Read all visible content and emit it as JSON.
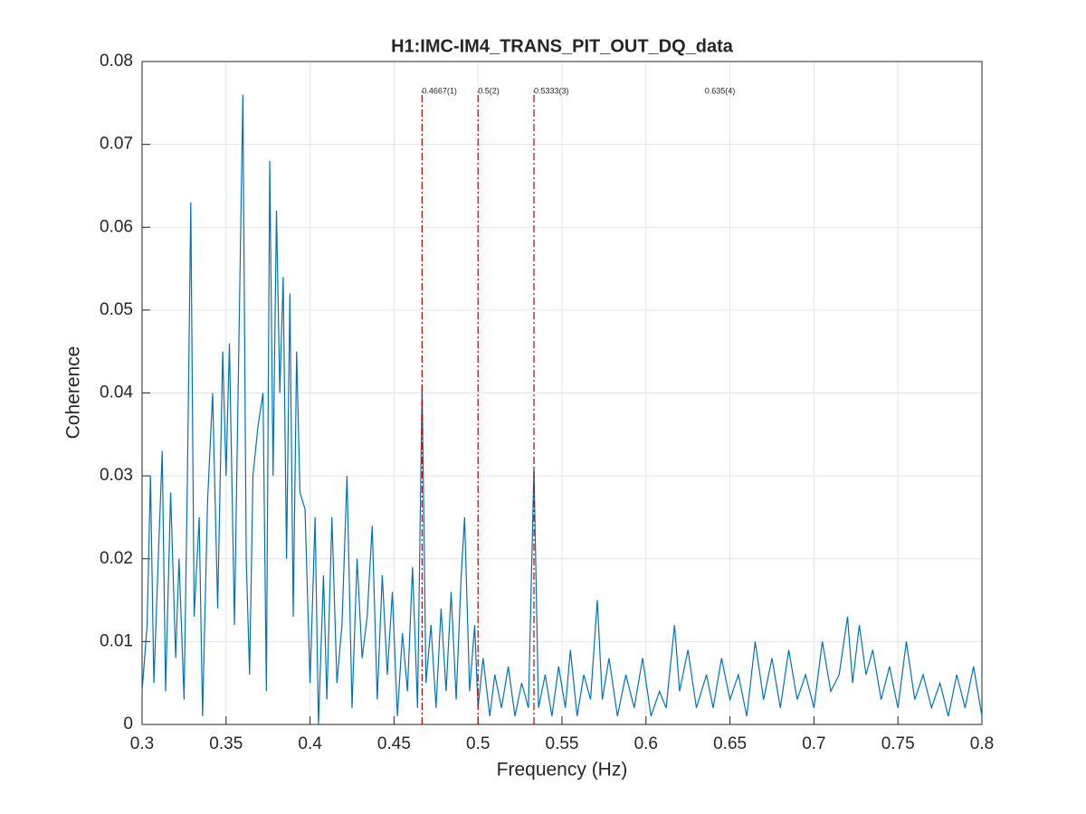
{
  "chart_data": {
    "type": "line",
    "title": "H1:IMC-IM4_TRANS_PIT_OUT_DQ_data",
    "xlabel": "Frequency (Hz)",
    "ylabel": "Coherence",
    "color": "#0072bd",
    "grid": true,
    "xlim": [
      0.3,
      0.8
    ],
    "ylim": [
      0,
      0.08
    ],
    "xticks": [
      0.3,
      0.35,
      0.4,
      0.45,
      0.5,
      0.55,
      0.6,
      0.65,
      0.7,
      0.75,
      0.8
    ],
    "yticks": [
      0,
      0.01,
      0.02,
      0.03,
      0.04,
      0.05,
      0.06,
      0.07,
      0.08
    ],
    "markers": [
      {
        "x": 0.4667,
        "label": "0.4667(1)",
        "show_line": true,
        "color": "#c00000"
      },
      {
        "x": 0.5,
        "label": "0.5(2)",
        "show_line": true,
        "color": "#c00000"
      },
      {
        "x": 0.5333,
        "label": "0.5333(3)",
        "show_line": true,
        "color": "#c00000"
      },
      {
        "x": 0.635,
        "label": "0.635(4)",
        "show_line": false,
        "color": "#c00000"
      }
    ],
    "x": [
      0.3,
      0.303,
      0.305,
      0.307,
      0.31,
      0.312,
      0.314,
      0.317,
      0.32,
      0.322,
      0.325,
      0.327,
      0.329,
      0.331,
      0.334,
      0.336,
      0.339,
      0.342,
      0.345,
      0.348,
      0.35,
      0.352,
      0.355,
      0.357,
      0.36,
      0.362,
      0.364,
      0.366,
      0.369,
      0.372,
      0.374,
      0.376,
      0.378,
      0.38,
      0.382,
      0.384,
      0.386,
      0.388,
      0.39,
      0.392,
      0.394,
      0.397,
      0.4,
      0.403,
      0.405,
      0.408,
      0.41,
      0.413,
      0.416,
      0.419,
      0.422,
      0.425,
      0.428,
      0.431,
      0.434,
      0.437,
      0.44,
      0.443,
      0.446,
      0.449,
      0.452,
      0.455,
      0.458,
      0.461,
      0.464,
      0.4667,
      0.469,
      0.472,
      0.475,
      0.478,
      0.481,
      0.484,
      0.487,
      0.49,
      0.492,
      0.495,
      0.498,
      0.5,
      0.503,
      0.507,
      0.51,
      0.514,
      0.518,
      0.522,
      0.526,
      0.53,
      0.5333,
      0.536,
      0.54,
      0.544,
      0.548,
      0.552,
      0.555,
      0.559,
      0.563,
      0.567,
      0.571,
      0.574,
      0.578,
      0.583,
      0.588,
      0.593,
      0.598,
      0.603,
      0.608,
      0.612,
      0.617,
      0.62,
      0.625,
      0.63,
      0.636,
      0.64,
      0.645,
      0.65,
      0.655,
      0.66,
      0.665,
      0.67,
      0.675,
      0.68,
      0.685,
      0.69,
      0.695,
      0.7,
      0.705,
      0.71,
      0.715,
      0.72,
      0.723,
      0.727,
      0.731,
      0.735,
      0.74,
      0.745,
      0.75,
      0.755,
      0.76,
      0.765,
      0.77,
      0.775,
      0.78,
      0.785,
      0.79,
      0.795,
      0.8
    ],
    "values": [
      0.004,
      0.012,
      0.03,
      0.005,
      0.022,
      0.033,
      0.004,
      0.028,
      0.008,
      0.02,
      0.003,
      0.03,
      0.063,
      0.013,
      0.025,
      0.001,
      0.027,
      0.04,
      0.014,
      0.045,
      0.03,
      0.046,
      0.012,
      0.038,
      0.076,
      0.02,
      0.006,
      0.03,
      0.036,
      0.04,
      0.004,
      0.068,
      0.03,
      0.062,
      0.04,
      0.054,
      0.02,
      0.052,
      0.013,
      0.045,
      0.028,
      0.026,
      0.005,
      0.025,
      0.0,
      0.018,
      0.003,
      0.025,
      0.005,
      0.012,
      0.03,
      0.002,
      0.02,
      0.008,
      0.013,
      0.024,
      0.003,
      0.018,
      0.006,
      0.016,
      0.001,
      0.011,
      0.004,
      0.019,
      0.002,
      0.041,
      0.005,
      0.012,
      0.002,
      0.014,
      0.004,
      0.016,
      0.003,
      0.018,
      0.025,
      0.004,
      0.012,
      0.002,
      0.008,
      0.001,
      0.006,
      0.002,
      0.007,
      0.001,
      0.005,
      0.002,
      0.031,
      0.002,
      0.006,
      0.001,
      0.007,
      0.002,
      0.009,
      0.001,
      0.006,
      0.003,
      0.015,
      0.003,
      0.008,
      0.001,
      0.006,
      0.002,
      0.008,
      0.001,
      0.004,
      0.002,
      0.012,
      0.004,
      0.009,
      0.002,
      0.006,
      0.002,
      0.008,
      0.003,
      0.006,
      0.001,
      0.01,
      0.003,
      0.008,
      0.002,
      0.009,
      0.003,
      0.006,
      0.002,
      0.01,
      0.004,
      0.006,
      0.013,
      0.005,
      0.012,
      0.006,
      0.009,
      0.003,
      0.007,
      0.002,
      0.01,
      0.003,
      0.006,
      0.002,
      0.005,
      0.001,
      0.006,
      0.002,
      0.007,
      0.001
    ]
  }
}
